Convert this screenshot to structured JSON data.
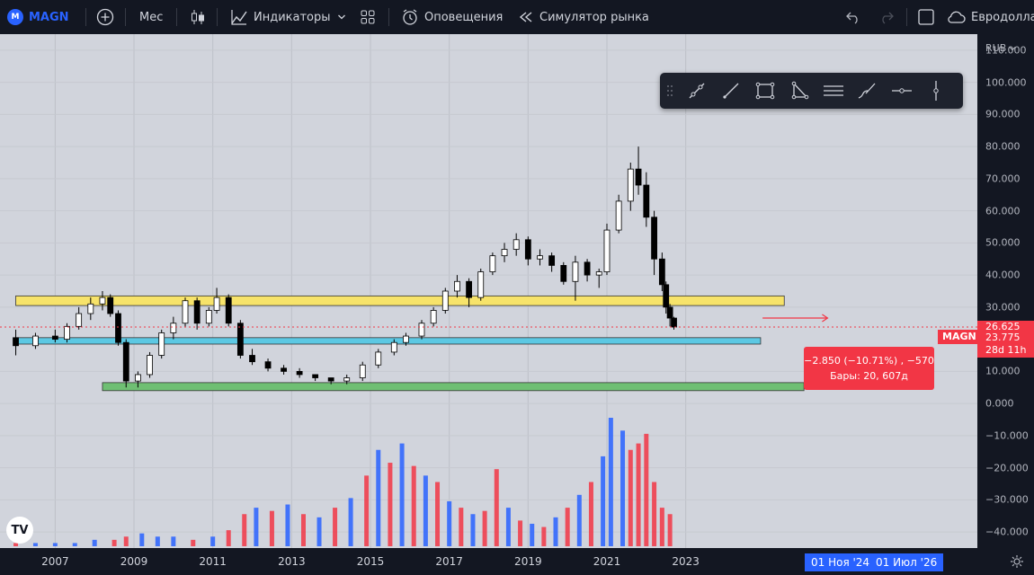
{
  "toolbar": {
    "symbol": "MAGN",
    "logo": "M",
    "add_symbol_icon": "plus-circle-icon",
    "interval": "Мес",
    "indicators": "Индикаторы",
    "alerts": "Оповещения",
    "market_replay": "Симулятор рынка",
    "symbol_description": "Евродоллар"
  },
  "price_axis": {
    "currency": "RUB",
    "labels": [
      "110.000",
      "100.000",
      "90.000",
      "80.000",
      "70.000",
      "60.000",
      "50.000",
      "40.000",
      "30.000",
      "10.000",
      "0.000",
      "−10.000",
      "−20.000",
      "−30.000",
      "−40.000"
    ],
    "tag_hidden": "26.625",
    "last_price": "23.775",
    "countdown": "28d 11h"
  },
  "symbol_tag": "MAGN",
  "time_axis": {
    "years": [
      "2007",
      "2009",
      "2011",
      "2013",
      "2015",
      "2017",
      "2019",
      "2021",
      "2023"
    ],
    "range_start": "01 Ноя '24",
    "range_end": "01 Июл '26"
  },
  "measure": {
    "line1": "−2.850 (−10.71%) , −570",
    "line2": "Бары: 20, 607д"
  },
  "tv_logo": "TV",
  "colors": {
    "up": "#2962ff",
    "down": "#f23645",
    "yellow_zone": "#f7e36a",
    "cyan_zone": "#5cc8e3",
    "green_zone": "#6fbf73"
  },
  "chart_data": {
    "type": "candlestick",
    "price_unit": "RUB",
    "candles": [
      {
        "t": 2006.0,
        "o": 20.5,
        "h": 23,
        "l": 15,
        "c": 18
      },
      {
        "t": 2006.5,
        "o": 18,
        "h": 22,
        "l": 17,
        "c": 21
      },
      {
        "t": 2007.0,
        "o": 21,
        "h": 23,
        "l": 19,
        "c": 20
      },
      {
        "t": 2007.3,
        "o": 20,
        "h": 25,
        "l": 19,
        "c": 24
      },
      {
        "t": 2007.6,
        "o": 24,
        "h": 30,
        "l": 23,
        "c": 28
      },
      {
        "t": 2007.9,
        "o": 28,
        "h": 33,
        "l": 26,
        "c": 31
      },
      {
        "t": 2008.2,
        "o": 31,
        "h": 35,
        "l": 29,
        "c": 33
      },
      {
        "t": 2008.4,
        "o": 33,
        "h": 34,
        "l": 27,
        "c": 28
      },
      {
        "t": 2008.6,
        "o": 28,
        "h": 29,
        "l": 18,
        "c": 19
      },
      {
        "t": 2008.8,
        "o": 19,
        "h": 20,
        "l": 5,
        "c": 7
      },
      {
        "t": 2009.1,
        "o": 7,
        "h": 10,
        "l": 5,
        "c": 9
      },
      {
        "t": 2009.4,
        "o": 9,
        "h": 16,
        "l": 8,
        "c": 15
      },
      {
        "t": 2009.7,
        "o": 15,
        "h": 23,
        "l": 14,
        "c": 22
      },
      {
        "t": 2010.0,
        "o": 22,
        "h": 27,
        "l": 20,
        "c": 25
      },
      {
        "t": 2010.3,
        "o": 25,
        "h": 33,
        "l": 24,
        "c": 32
      },
      {
        "t": 2010.6,
        "o": 32,
        "h": 33,
        "l": 23,
        "c": 25
      },
      {
        "t": 2010.9,
        "o": 25,
        "h": 30,
        "l": 24,
        "c": 29
      },
      {
        "t": 2011.1,
        "o": 29,
        "h": 36,
        "l": 28,
        "c": 33
      },
      {
        "t": 2011.4,
        "o": 33,
        "h": 34,
        "l": 24,
        "c": 25
      },
      {
        "t": 2011.7,
        "o": 25,
        "h": 26,
        "l": 14,
        "c": 15
      },
      {
        "t": 2012.0,
        "o": 15,
        "h": 17,
        "l": 12,
        "c": 13
      },
      {
        "t": 2012.4,
        "o": 13,
        "h": 14,
        "l": 10,
        "c": 11
      },
      {
        "t": 2012.8,
        "o": 11,
        "h": 12,
        "l": 9,
        "c": 10
      },
      {
        "t": 2013.2,
        "o": 10,
        "h": 11,
        "l": 8,
        "c": 9
      },
      {
        "t": 2013.6,
        "o": 9,
        "h": 9,
        "l": 7,
        "c": 8
      },
      {
        "t": 2014.0,
        "o": 8,
        "h": 8,
        "l": 6,
        "c": 7
      },
      {
        "t": 2014.4,
        "o": 7,
        "h": 9,
        "l": 6,
        "c": 8
      },
      {
        "t": 2014.8,
        "o": 8,
        "h": 13,
        "l": 7,
        "c": 12
      },
      {
        "t": 2015.2,
        "o": 12,
        "h": 17,
        "l": 11,
        "c": 16
      },
      {
        "t": 2015.6,
        "o": 16,
        "h": 20,
        "l": 15,
        "c": 19
      },
      {
        "t": 2015.9,
        "o": 19,
        "h": 22,
        "l": 18,
        "c": 21
      },
      {
        "t": 2016.3,
        "o": 21,
        "h": 26,
        "l": 20,
        "c": 25
      },
      {
        "t": 2016.6,
        "o": 25,
        "h": 30,
        "l": 24,
        "c": 29
      },
      {
        "t": 2016.9,
        "o": 29,
        "h": 36,
        "l": 28,
        "c": 35
      },
      {
        "t": 2017.2,
        "o": 35,
        "h": 40,
        "l": 33,
        "c": 38
      },
      {
        "t": 2017.5,
        "o": 38,
        "h": 39,
        "l": 30,
        "c": 33
      },
      {
        "t": 2017.8,
        "o": 33,
        "h": 42,
        "l": 32,
        "c": 41
      },
      {
        "t": 2018.1,
        "o": 41,
        "h": 47,
        "l": 40,
        "c": 46
      },
      {
        "t": 2018.4,
        "o": 46,
        "h": 50,
        "l": 44,
        "c": 48
      },
      {
        "t": 2018.7,
        "o": 48,
        "h": 53,
        "l": 46,
        "c": 51
      },
      {
        "t": 2019.0,
        "o": 51,
        "h": 52,
        "l": 43,
        "c": 45
      },
      {
        "t": 2019.3,
        "o": 45,
        "h": 48,
        "l": 43,
        "c": 46
      },
      {
        "t": 2019.6,
        "o": 46,
        "h": 47,
        "l": 41,
        "c": 43
      },
      {
        "t": 2019.9,
        "o": 43,
        "h": 44,
        "l": 37,
        "c": 38
      },
      {
        "t": 2020.2,
        "o": 38,
        "h": 46,
        "l": 32,
        "c": 44
      },
      {
        "t": 2020.5,
        "o": 44,
        "h": 45,
        "l": 38,
        "c": 40
      },
      {
        "t": 2020.8,
        "o": 40,
        "h": 42,
        "l": 36,
        "c": 41
      },
      {
        "t": 2021.0,
        "o": 41,
        "h": 56,
        "l": 40,
        "c": 54
      },
      {
        "t": 2021.3,
        "o": 54,
        "h": 65,
        "l": 53,
        "c": 63
      },
      {
        "t": 2021.6,
        "o": 63,
        "h": 75,
        "l": 60,
        "c": 73
      },
      {
        "t": 2021.8,
        "o": 73,
        "h": 80,
        "l": 65,
        "c": 68
      },
      {
        "t": 2022.0,
        "o": 68,
        "h": 72,
        "l": 55,
        "c": 58
      },
      {
        "t": 2022.2,
        "o": 58,
        "h": 60,
        "l": 40,
        "c": 45
      },
      {
        "t": 2022.4,
        "o": 45,
        "h": 47,
        "l": 35,
        "c": 37
      },
      {
        "t": 2022.5,
        "o": 37,
        "h": 38,
        "l": 28,
        "c": 30
      },
      {
        "t": 2022.6,
        "o": 30,
        "h": 31,
        "l": 24,
        "c": 26.6
      },
      {
        "t": 2022.7,
        "o": 26.6,
        "h": 27,
        "l": 23,
        "c": 23.8
      }
    ],
    "volume": [
      {
        "t": 2006.0,
        "v": 1,
        "up": false
      },
      {
        "t": 2006.5,
        "v": 1,
        "up": true
      },
      {
        "t": 2007.0,
        "v": 1,
        "up": true
      },
      {
        "t": 2007.5,
        "v": 1,
        "up": true
      },
      {
        "t": 2008.0,
        "v": 2,
        "up": true
      },
      {
        "t": 2008.5,
        "v": 2,
        "up": false
      },
      {
        "t": 2008.8,
        "v": 3,
        "up": false
      },
      {
        "t": 2009.2,
        "v": 4,
        "up": true
      },
      {
        "t": 2009.6,
        "v": 3,
        "up": true
      },
      {
        "t": 2010.0,
        "v": 3,
        "up": true
      },
      {
        "t": 2010.5,
        "v": 2,
        "up": false
      },
      {
        "t": 2011.0,
        "v": 3,
        "up": true
      },
      {
        "t": 2011.4,
        "v": 5,
        "up": false
      },
      {
        "t": 2011.8,
        "v": 10,
        "up": false
      },
      {
        "t": 2012.1,
        "v": 12,
        "up": true
      },
      {
        "t": 2012.5,
        "v": 11,
        "up": false
      },
      {
        "t": 2012.9,
        "v": 13,
        "up": true
      },
      {
        "t": 2013.3,
        "v": 10,
        "up": false
      },
      {
        "t": 2013.7,
        "v": 9,
        "up": true
      },
      {
        "t": 2014.1,
        "v": 12,
        "up": false
      },
      {
        "t": 2014.5,
        "v": 15,
        "up": true
      },
      {
        "t": 2014.9,
        "v": 22,
        "up": false
      },
      {
        "t": 2015.2,
        "v": 30,
        "up": true
      },
      {
        "t": 2015.5,
        "v": 26,
        "up": false
      },
      {
        "t": 2015.8,
        "v": 32,
        "up": true
      },
      {
        "t": 2016.1,
        "v": 25,
        "up": false
      },
      {
        "t": 2016.4,
        "v": 22,
        "up": true
      },
      {
        "t": 2016.7,
        "v": 20,
        "up": false
      },
      {
        "t": 2017.0,
        "v": 14,
        "up": true
      },
      {
        "t": 2017.3,
        "v": 12,
        "up": false
      },
      {
        "t": 2017.6,
        "v": 10,
        "up": true
      },
      {
        "t": 2017.9,
        "v": 11,
        "up": false
      },
      {
        "t": 2018.2,
        "v": 24,
        "up": false
      },
      {
        "t": 2018.5,
        "v": 12,
        "up": true
      },
      {
        "t": 2018.8,
        "v": 8,
        "up": false
      },
      {
        "t": 2019.1,
        "v": 7,
        "up": true
      },
      {
        "t": 2019.4,
        "v": 6,
        "up": false
      },
      {
        "t": 2019.7,
        "v": 9,
        "up": true
      },
      {
        "t": 2020.0,
        "v": 12,
        "up": false
      },
      {
        "t": 2020.3,
        "v": 16,
        "up": true
      },
      {
        "t": 2020.6,
        "v": 20,
        "up": false
      },
      {
        "t": 2020.9,
        "v": 28,
        "up": true
      },
      {
        "t": 2021.1,
        "v": 40,
        "up": true
      },
      {
        "t": 2021.4,
        "v": 36,
        "up": true
      },
      {
        "t": 2021.6,
        "v": 30,
        "up": false
      },
      {
        "t": 2021.8,
        "v": 32,
        "up": false
      },
      {
        "t": 2022.0,
        "v": 35,
        "up": false
      },
      {
        "t": 2022.2,
        "v": 20,
        "up": false
      },
      {
        "t": 2022.4,
        "v": 12,
        "up": false
      },
      {
        "t": 2022.6,
        "v": 10,
        "up": false
      }
    ],
    "zones": [
      {
        "name": "yellow",
        "from_t": 2006.0,
        "to_t": 2025.5,
        "lo": 30.5,
        "hi": 33.5
      },
      {
        "name": "cyan",
        "from_t": 2006.0,
        "to_t": 2024.9,
        "lo": 18.5,
        "hi": 20.5
      },
      {
        "name": "green",
        "from_t": 2008.2,
        "to_t": 2026.0,
        "lo": 4,
        "hi": 6.5
      }
    ],
    "price_range": [
      -45,
      115
    ],
    "time_range": [
      2005.6,
      2030.4
    ]
  }
}
